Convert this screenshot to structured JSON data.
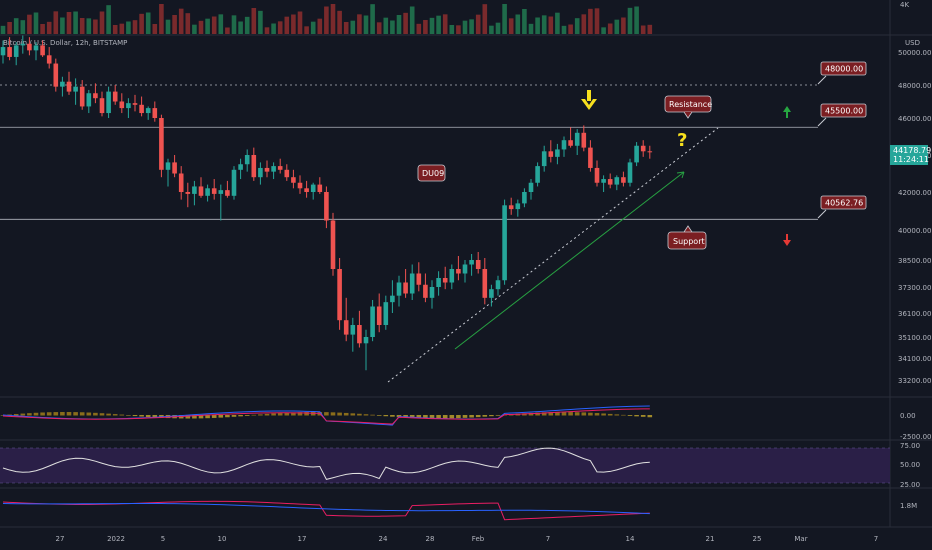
{
  "header": {
    "symbol_title": "Bitcoin / U.S. Dollar, 12h, BITSTAMP",
    "currency": "USD",
    "volume_scale_label": "4K"
  },
  "axis": {
    "price_ticks": [
      "50000.00",
      "48000.00",
      "46000.00",
      "44000.00",
      "42000.00",
      "40000.00",
      "38500.00",
      "37300.00",
      "36100.00",
      "35100.00",
      "34100.00",
      "33200.00"
    ],
    "date_ticks": [
      "27",
      "2022",
      "5",
      "10",
      "17",
      "24",
      "28",
      "Feb",
      "7",
      "14",
      "21",
      "25",
      "Mar",
      "7"
    ],
    "macd_ticks": [
      "0.00",
      "-2500.00"
    ],
    "rsi_ticks": [
      "75.00",
      "50.00",
      "25.00"
    ],
    "obv_ticks": [
      "1.8M"
    ]
  },
  "last_price": {
    "value": "44178.79",
    "countdown": "11:24:11"
  },
  "levels": [
    {
      "name": "level-48000",
      "label": "48000.00",
      "price": 48000,
      "style": "dashed"
    },
    {
      "name": "level-45500",
      "label": "45500.00",
      "price": 45500,
      "style": "solid"
    },
    {
      "name": "level-40562",
      "label": "40562.76",
      "price": 40562.76,
      "style": "solid"
    }
  ],
  "annotations": {
    "resistance": "Resistance",
    "support": "Support",
    "du09": "DU09",
    "question": "?"
  },
  "colors": {
    "up": "#26a69a",
    "down": "#ef5350",
    "bg": "#131722",
    "label_bg": "#7b1e22",
    "highlight": "#f7e01e",
    "green_arrow": "#26a641",
    "red_arrow": "#e53935",
    "macd": "#2962ff",
    "signal": "#e91e63",
    "rsi_line": "#e0e0e0",
    "rsi_band": "#2a1f47"
  },
  "icons": {
    "down_arrow": "yellow-down-arrow-icon",
    "up_arrow": "green-up-arrow-icon",
    "down_red": "red-down-arrow-icon"
  },
  "chart_data": {
    "type": "candlestick",
    "title": "Bitcoin / U.S. Dollar, 12h, BITSTAMP",
    "ylabel": "USD",
    "ylim": [
      32800,
      51000
    ],
    "x_ticks": [
      "27",
      "2022",
      "5",
      "10",
      "17",
      "24",
      "28",
      "Feb",
      "7",
      "14",
      "21",
      "25",
      "Mar",
      "7"
    ],
    "ohlc": [
      [
        49800,
        50700,
        49300,
        50300
      ],
      [
        50300,
        50900,
        49500,
        49700
      ],
      [
        49700,
        50600,
        49200,
        50400
      ],
      [
        50400,
        51000,
        49900,
        50500
      ],
      [
        50500,
        50900,
        49800,
        50100
      ],
      [
        50100,
        50600,
        49500,
        50400
      ],
      [
        50400,
        50700,
        49700,
        49800
      ],
      [
        49800,
        50300,
        49000,
        49300
      ],
      [
        49300,
        49600,
        47600,
        47900
      ],
      [
        47900,
        48500,
        47300,
        48200
      ],
      [
        48200,
        48800,
        47400,
        47600
      ],
      [
        47600,
        48400,
        46800,
        47900
      ],
      [
        47900,
        48300,
        46500,
        46700
      ],
      [
        46700,
        47700,
        46300,
        47500
      ],
      [
        47500,
        48100,
        46900,
        47200
      ],
      [
        47200,
        47600,
        46100,
        46300
      ],
      [
        46300,
        47900,
        46000,
        47600
      ],
      [
        47600,
        48000,
        46800,
        47000
      ],
      [
        47000,
        47500,
        46300,
        46600
      ],
      [
        46600,
        47200,
        46000,
        46900
      ],
      [
        46900,
        47400,
        46400,
        46800
      ],
      [
        46800,
        47300,
        46100,
        46300
      ],
      [
        46300,
        46700,
        45900,
        46600
      ],
      [
        46600,
        47000,
        45800,
        46000
      ],
      [
        46000,
        46200,
        42800,
        43200
      ],
      [
        43200,
        43800,
        42300,
        43600
      ],
      [
        43600,
        44000,
        42800,
        43000
      ],
      [
        43000,
        43400,
        41600,
        42000
      ],
      [
        42000,
        42500,
        41200,
        41900
      ],
      [
        41900,
        42600,
        41300,
        42300
      ],
      [
        42300,
        42800,
        41700,
        41800
      ],
      [
        41800,
        42400,
        41500,
        42200
      ],
      [
        42200,
        42700,
        41600,
        41900
      ],
      [
        41900,
        42400,
        40500,
        42100
      ],
      [
        42100,
        42600,
        41700,
        41800
      ],
      [
        41800,
        43400,
        41600,
        43200
      ],
      [
        43200,
        43800,
        42700,
        43500
      ],
      [
        43500,
        44300,
        43100,
        44000
      ],
      [
        44000,
        44400,
        42600,
        42800
      ],
      [
        42800,
        43600,
        42400,
        43300
      ],
      [
        43300,
        43700,
        42800,
        43100
      ],
      [
        43100,
        43600,
        42700,
        43400
      ],
      [
        43400,
        43800,
        43000,
        43200
      ],
      [
        43200,
        43500,
        42600,
        42800
      ],
      [
        42800,
        43200,
        42200,
        42500
      ],
      [
        42500,
        42900,
        41900,
        42200
      ],
      [
        42200,
        42600,
        41700,
        42000
      ],
      [
        42000,
        42500,
        41600,
        42400
      ],
      [
        42400,
        42800,
        41900,
        42000
      ],
      [
        42000,
        42300,
        40100,
        40500
      ],
      [
        40500,
        40900,
        37800,
        38100
      ],
      [
        38100,
        38600,
        35400,
        35800
      ],
      [
        35800,
        36800,
        34900,
        35200
      ],
      [
        35200,
        35900,
        34400,
        35600
      ],
      [
        35600,
        36200,
        34600,
        34800
      ],
      [
        34800,
        35400,
        33600,
        35100
      ],
      [
        35100,
        36700,
        34900,
        36400
      ],
      [
        36400,
        37000,
        35300,
        35600
      ],
      [
        35600,
        36900,
        35400,
        36600
      ],
      [
        36600,
        37600,
        36100,
        36900
      ],
      [
        36900,
        37800,
        36400,
        37500
      ],
      [
        37500,
        38100,
        36800,
        37000
      ],
      [
        37000,
        38300,
        36700,
        37900
      ],
      [
        37900,
        38400,
        37100,
        37400
      ],
      [
        37400,
        37900,
        36600,
        36800
      ],
      [
        36800,
        37600,
        36300,
        37300
      ],
      [
        37300,
        38000,
        36900,
        37700
      ],
      [
        37700,
        38200,
        37200,
        37500
      ],
      [
        37500,
        38300,
        37200,
        38100
      ],
      [
        38100,
        38700,
        37600,
        37900
      ],
      [
        37900,
        38500,
        37500,
        38300
      ],
      [
        38300,
        38800,
        37800,
        38500
      ],
      [
        38500,
        38900,
        37900,
        38100
      ],
      [
        38100,
        38600,
        36500,
        36800
      ],
      [
        36800,
        37400,
        36400,
        37200
      ],
      [
        37200,
        37800,
        36900,
        37600
      ],
      [
        37600,
        41600,
        37400,
        41300
      ],
      [
        41300,
        41700,
        40800,
        41100
      ],
      [
        41100,
        41600,
        40700,
        41400
      ],
      [
        41400,
        42200,
        41200,
        42000
      ],
      [
        42000,
        42700,
        41600,
        42500
      ],
      [
        42500,
        43600,
        42300,
        43400
      ],
      [
        43400,
        44500,
        43100,
        44200
      ],
      [
        44200,
        44800,
        43600,
        43900
      ],
      [
        43900,
        44600,
        43500,
        44300
      ],
      [
        44300,
        45000,
        43900,
        44800
      ],
      [
        44800,
        45500,
        44400,
        44500
      ],
      [
        44500,
        45400,
        44000,
        45200
      ],
      [
        45200,
        45600,
        44200,
        44400
      ],
      [
        44400,
        44800,
        43100,
        43300
      ],
      [
        43300,
        43700,
        42300,
        42500
      ],
      [
        42500,
        42900,
        42000,
        42700
      ],
      [
        42700,
        43000,
        42200,
        42400
      ],
      [
        42400,
        42900,
        42100,
        42800
      ],
      [
        42800,
        43100,
        42300,
        42500
      ],
      [
        42500,
        43800,
        42300,
        43600
      ],
      [
        43600,
        44700,
        43400,
        44500
      ],
      [
        44500,
        44800,
        43900,
        44200
      ],
      [
        44200,
        44500,
        43800,
        44179
      ]
    ]
  }
}
